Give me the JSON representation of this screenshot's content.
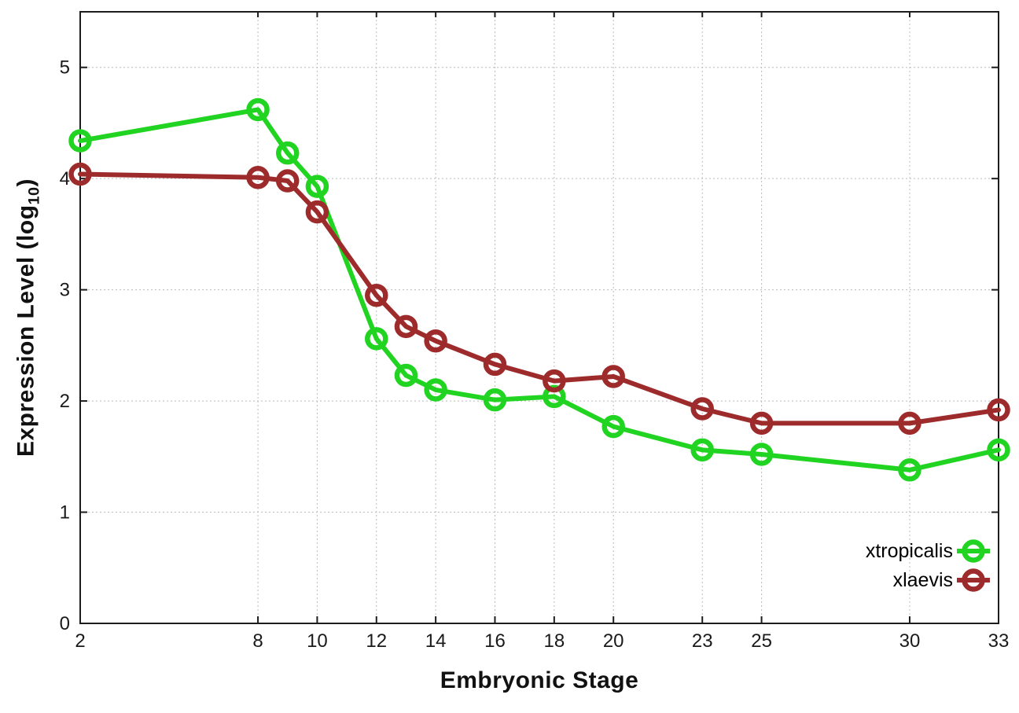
{
  "chart_data": {
    "type": "line",
    "title": "",
    "xlabel": "Embryonic Stage",
    "ylabel": "Expression Level (log10)",
    "ylabel_parts": {
      "prefix": "Expression Level (log",
      "sub": "10",
      "suffix": ")"
    },
    "x": [
      2,
      8,
      9,
      10,
      12,
      13,
      14,
      16,
      18,
      20,
      23,
      25,
      30,
      33
    ],
    "series": [
      {
        "name": "xtropicalis",
        "color": "#21d421",
        "values": [
          4.34,
          4.62,
          4.23,
          3.93,
          2.56,
          2.23,
          2.1,
          2.01,
          2.04,
          1.77,
          1.56,
          1.52,
          1.38,
          1.56
        ]
      },
      {
        "name": "xlaevis",
        "color": "#9e2b2b",
        "values": [
          4.04,
          4.01,
          3.98,
          3.7,
          2.95,
          2.67,
          2.54,
          2.33,
          2.18,
          2.22,
          1.93,
          1.8,
          1.8,
          1.92
        ]
      }
    ],
    "xticks": [
      2,
      8,
      10,
      12,
      14,
      16,
      18,
      20,
      23,
      25,
      30,
      33
    ],
    "yticks": [
      0,
      1,
      2,
      3,
      4,
      5
    ],
    "xlim": [
      2,
      33
    ],
    "ylim": [
      0,
      5.5
    ],
    "grid": true,
    "legend": {
      "position": "inside-bottom-right",
      "entries": [
        "xtropicalis",
        "xlaevis"
      ]
    },
    "colors": {
      "background": "#ffffff",
      "grid": "#bbbbbb",
      "axis": "#1c1c1c",
      "tick_label": "#1a1a1a",
      "xtropicalis": "#21d421",
      "xlaevis": "#9e2b2b"
    }
  }
}
